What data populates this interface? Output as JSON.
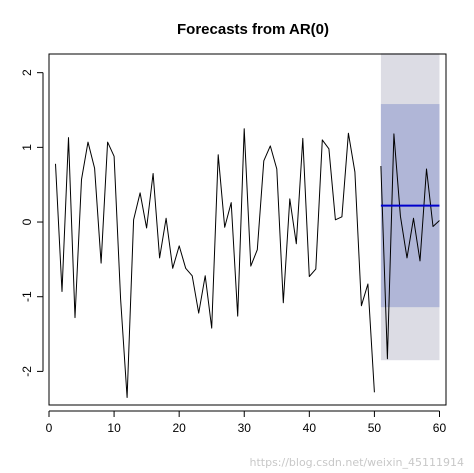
{
  "chart_data": {
    "type": "line",
    "title": "Forecasts from AR(0)",
    "xlabel": "",
    "ylabel": "",
    "xlim": [
      0,
      61
    ],
    "ylim": [
      -2.45,
      2.25
    ],
    "x_ticks": [
      0,
      10,
      20,
      30,
      40,
      50,
      60
    ],
    "x_tick_labels": [
      "0",
      "10",
      "20",
      "30",
      "40",
      "50",
      "60"
    ],
    "y_ticks": [
      -2,
      -1,
      0,
      1,
      2
    ],
    "y_tick_labels": [
      "-2",
      "-1",
      "0",
      "1",
      "2"
    ],
    "grid": false,
    "series": [
      {
        "role": "history",
        "color": "#000000",
        "x": [
          1,
          2,
          3,
          4,
          5,
          6,
          7,
          8,
          9,
          10,
          11,
          12,
          13,
          14,
          15,
          16,
          17,
          18,
          19,
          20,
          21,
          22,
          23,
          24,
          25,
          26,
          27,
          28,
          29,
          30,
          31,
          32,
          33,
          34,
          35,
          36,
          37,
          38,
          39,
          40,
          41,
          42,
          43,
          44,
          45,
          46,
          47,
          48,
          49,
          50
        ],
        "y": [
          0.78,
          -0.93,
          1.13,
          -1.28,
          0.57,
          1.07,
          0.72,
          -0.55,
          1.07,
          0.88,
          -1.03,
          -2.35,
          0.03,
          0.39,
          -0.08,
          0.65,
          -0.48,
          0.05,
          -0.62,
          -0.32,
          -0.62,
          -0.72,
          -1.22,
          -0.72,
          -1.42,
          0.9,
          -0.07,
          0.26,
          -1.26,
          1.25,
          -0.59,
          -0.37,
          0.82,
          1.02,
          0.71,
          -1.08,
          0.31,
          -0.29,
          1.12,
          -0.73,
          -0.63,
          1.1,
          0.98,
          0.03,
          0.07,
          1.19,
          0.67,
          -1.12,
          -0.83,
          -2.28
        ]
      },
      {
        "role": "overlay",
        "color": "#000000",
        "x": [
          51,
          52,
          53,
          54,
          55,
          56,
          57,
          58,
          59,
          60
        ],
        "y": [
          0.75,
          -1.83,
          1.18,
          0.08,
          -0.48,
          0.05,
          -0.52,
          0.71,
          -0.06,
          0.02
        ]
      },
      {
        "role": "forecast-mean",
        "color": "#0000cc",
        "x": [
          51,
          60
        ],
        "y": [
          0.22,
          0.22
        ]
      }
    ],
    "intervals": [
      {
        "level": "95",
        "x": [
          51,
          60
        ],
        "lower": -1.85,
        "upper": 2.26,
        "color": "#dcdce4"
      },
      {
        "level": "80",
        "x": [
          51,
          60
        ],
        "lower": -1.14,
        "upper": 1.58,
        "color": "#b0b6d7"
      }
    ]
  },
  "watermark": "https://blog.csdn.net/weixin_45111914"
}
